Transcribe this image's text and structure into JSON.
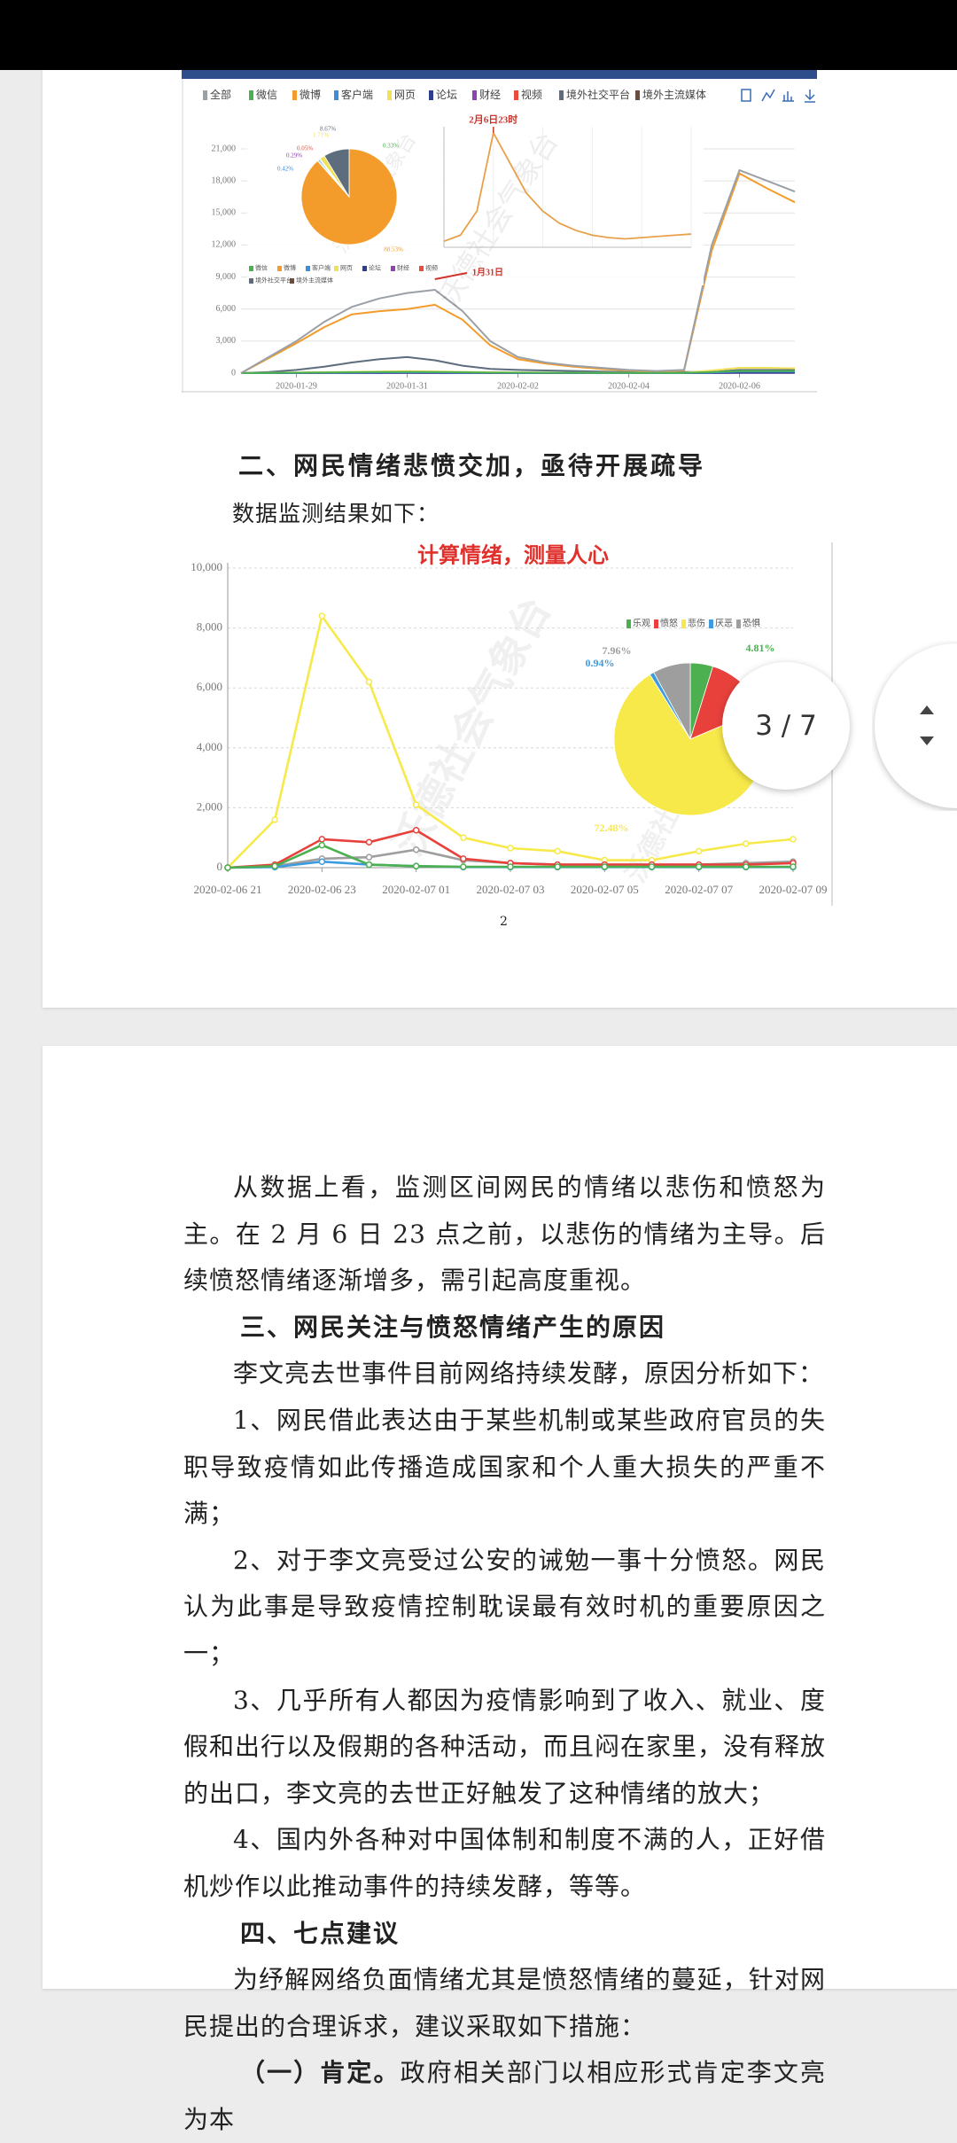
{
  "figure_1": {
    "type": "line",
    "grid": true,
    "categories": [
      null,
      null,
      "2020-01-29",
      null,
      null,
      null,
      "2020-01-31",
      null,
      null,
      null,
      "2020-02-02",
      null,
      null,
      null,
      "2020-02-04",
      null,
      null,
      null,
      "2020-02-06",
      null,
      null
    ],
    "ylim": [
      0,
      21000
    ],
    "yticks": [
      0,
      {
        "value": 3000,
        "label": "3,000"
      },
      {
        "value": 6000,
        "label": "6,000"
      },
      {
        "value": 9000,
        "label": "9,000"
      },
      {
        "value": 12000,
        "label": "12,000"
      },
      {
        "value": 15000,
        "label": "15,000"
      },
      {
        "value": 18000,
        "label": "18,000"
      },
      {
        "value": 21000,
        "label": "21,000"
      }
    ],
    "series": [
      {
        "name": "全部",
        "color": "#9aa0a6",
        "values": [
          0,
          1500,
          3000,
          4800,
          6200,
          7000,
          7500,
          7800,
          5800,
          3000,
          1500,
          1000,
          700,
          500,
          300,
          200,
          300,
          12000,
          19000,
          18000,
          17000
        ]
      },
      {
        "name": "微信",
        "color": "#4caf50",
        "values": [
          0,
          20,
          40,
          60,
          80,
          100,
          120,
          110,
          80,
          50,
          40,
          30,
          30,
          20,
          20,
          20,
          20,
          100,
          200,
          200,
          200
        ]
      },
      {
        "name": "微博",
        "color": "#f39c2b",
        "values": [
          0,
          1400,
          2800,
          4300,
          5500,
          5800,
          6000,
          6400,
          5000,
          2600,
          1300,
          900,
          600,
          400,
          250,
          150,
          250,
          11500,
          18700,
          17300,
          16000
        ]
      },
      {
        "name": "客户端",
        "color": "#3b8fd9",
        "values": [
          0,
          10,
          20,
          30,
          40,
          60,
          70,
          60,
          40,
          30,
          20,
          20,
          20,
          10,
          10,
          10,
          10,
          50,
          150,
          150,
          150
        ]
      },
      {
        "name": "网页",
        "color": "#f1e05a",
        "values": [
          0,
          30,
          60,
          90,
          120,
          150,
          180,
          160,
          120,
          80,
          60,
          50,
          40,
          30,
          30,
          30,
          30,
          250,
          500,
          500,
          450
        ]
      },
      {
        "name": "论坛",
        "color": "#2c3e8c",
        "values": [
          0,
          5,
          10,
          15,
          20,
          25,
          30,
          25,
          20,
          15,
          10,
          10,
          10,
          5,
          5,
          5,
          5,
          20,
          40,
          40,
          40
        ]
      },
      {
        "name": "财经",
        "color": "#8e44ad",
        "values": [
          0,
          2,
          4,
          6,
          8,
          10,
          12,
          10,
          8,
          6,
          4,
          4,
          4,
          2,
          2,
          2,
          2,
          10,
          20,
          20,
          20
        ]
      },
      {
        "name": "视频",
        "color": "#e74c3c",
        "values": [
          0,
          10,
          20,
          30,
          40,
          50,
          60,
          50,
          40,
          30,
          20,
          20,
          20,
          10,
          10,
          10,
          10,
          40,
          80,
          80,
          80
        ]
      },
      {
        "name": "境外社交平台",
        "color": "#5d6d7e",
        "values": [
          0,
          100,
          300,
          600,
          1000,
          1300,
          1500,
          1200,
          700,
          400,
          300,
          250,
          200,
          150,
          100,
          100,
          100,
          100,
          300,
          300,
          300
        ]
      },
      {
        "name": "境外主流媒体",
        "color": "#6e4b3a",
        "values": [
          0,
          3,
          6,
          9,
          12,
          15,
          18,
          15,
          12,
          9,
          6,
          6,
          6,
          3,
          3,
          3,
          3,
          15,
          30,
          30,
          30
        ]
      }
    ],
    "annotation": "1月31日",
    "watermark": "沃德社会气象台",
    "inset_pie": {
      "type": "pie",
      "values": [
        88.53,
        0.33,
        0.42,
        0.29,
        0.05,
        1.71,
        8.67
      ],
      "value_labels": [
        "88.53%",
        "0.33%",
        "0.42%",
        "0.29%",
        "0.05%",
        "1.71%",
        "8.67%"
      ],
      "colors": [
        "#f39c2b",
        "#4caf50",
        "#3b8fd9",
        "#8e44ad",
        "#e74c3c",
        "#f1e05a",
        "#5d6d7e"
      ]
    },
    "inset_line": {
      "type": "line",
      "annotation": "2月6日23时",
      "color": "#e8a04a",
      "ylim": [
        0,
        100
      ],
      "values": [
        5,
        10,
        30,
        95,
        70,
        45,
        30,
        20,
        14,
        10,
        8,
        7,
        8,
        9,
        10,
        11
      ]
    }
  },
  "section_2": {
    "heading": "二、网民情绪悲愤交加，亟待开展疏导",
    "intro": "数据监测结果如下："
  },
  "figure_2": {
    "type": "line",
    "title": "计算情绪，测量人心",
    "grid": true,
    "categories": [
      "2020-02-06 21",
      null,
      "2020-02-06 23",
      null,
      "2020-02-07 01",
      null,
      "2020-02-07 03",
      null,
      "2020-02-07 05",
      null,
      "2020-02-07 07",
      null,
      "2020-02-07 09"
    ],
    "ylim": [
      0,
      10000
    ],
    "yticks": [
      0,
      {
        "value": 2000,
        "label": "2,000"
      },
      {
        "value": 4000,
        "label": "4,000"
      },
      {
        "value": 6000,
        "label": "6,000"
      },
      {
        "value": 8000,
        "label": "8,000"
      },
      {
        "value": 10000,
        "label": "10,000"
      }
    ],
    "series": [
      {
        "name": "乐观",
        "color": "#4caf50",
        "values": [
          0,
          50,
          750,
          100,
          50,
          30,
          30,
          30,
          30,
          30,
          30,
          30,
          30
        ]
      },
      {
        "name": "愤怒",
        "color": "#e8413c",
        "values": [
          0,
          100,
          950,
          850,
          1250,
          300,
          150,
          100,
          100,
          100,
          100,
          100,
          150
        ]
      },
      {
        "name": "悲伤",
        "color": "#f7e94a",
        "values": [
          0,
          1600,
          8400,
          6200,
          2100,
          1000,
          650,
          550,
          250,
          250,
          550,
          800,
          950
        ]
      },
      {
        "name": "厌恶",
        "color": "#3d9be0",
        "values": [
          0,
          20,
          200,
          100,
          50,
          20,
          20,
          20,
          20,
          20,
          20,
          20,
          20
        ]
      },
      {
        "name": "恐惧",
        "color": "#9e9e9e",
        "values": [
          0,
          50,
          300,
          350,
          600,
          250,
          150,
          100,
          100,
          100,
          100,
          150,
          200
        ]
      }
    ],
    "pie": {
      "type": "pie",
      "values": [
        4.81,
        13.81,
        72.48,
        0.94,
        7.96
      ],
      "value_labels": [
        "4.81%",
        "13.81%",
        "72.48%",
        "0.94%",
        "7.96%"
      ]
    },
    "watermark": "沃德社会气象台"
  },
  "page_number": "2",
  "page_2": {
    "paragraphs": [
      "从数据上看，监测区间网民的情绪以悲伤和愤怒为主。在 2 月 6 日 23 点之前，以悲伤的情绪为主导。后续愤怒情绪逐渐增多，需引起高度重视。"
    ],
    "section_3": {
      "heading": "三、网民关注与愤怒情绪产生的原因",
      "paragraphs": [
        "李文亮去世事件目前网络持续发酵，原因分析如下：",
        "1、网民借此表达由于某些机制或某些政府官员的失职导致疫情如此传播造成国家和个人重大损失的严重不满；",
        "2、对于李文亮受过公安的诫勉一事十分愤怒。网民认为此事是导致疫情控制耽误最有效时机的重要原因之一；",
        "3、几乎所有人都因为疫情影响到了收入、就业、度假和出行以及假期的各种活动，而且闷在家里，没有释放的出口，李文亮的去世正好触发了这种情绪的放大；",
        "4、国内外各种对中国体制和制度不满的人，正好借机炒作以此推动事件的持续发酵，等等。"
      ]
    },
    "section_4": {
      "heading": "四、七点建议",
      "paragraphs": [
        "为纾解网络负面情绪尤其是愤怒情绪的蔓延，针对网民提出的合理诉求，建议采取如下措施："
      ],
      "item_1": {
        "lead": "（一）肯定。",
        "text": "政府相关部门以相应形式肯定李文亮为本"
      }
    }
  },
  "viewer": {
    "page_indicator": "3 / 7"
  }
}
